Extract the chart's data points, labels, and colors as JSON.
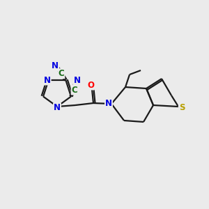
{
  "background_color": "#ebebeb",
  "bond_color": "#1a1a1a",
  "atom_colors": {
    "N": "#0000e0",
    "O": "#ff0000",
    "S": "#b8a000",
    "C_label": "#1a6b1a"
  },
  "figsize": [
    3.0,
    3.0
  ],
  "dpi": 100
}
